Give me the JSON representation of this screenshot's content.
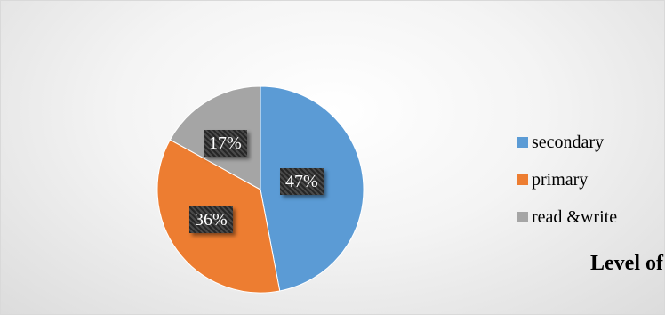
{
  "chart_data": {
    "type": "pie",
    "title": "Level of Education",
    "slices": [
      {
        "name": "secondary",
        "value": 47,
        "label": "47%",
        "color": "#5B9BD5"
      },
      {
        "name": "primary",
        "value": 36,
        "label": "36%",
        "color": "#ED7D31"
      },
      {
        "name": "read &write",
        "value": 17,
        "label": "17%",
        "color": "#A5A5A5"
      }
    ],
    "legend_placement": "right"
  }
}
